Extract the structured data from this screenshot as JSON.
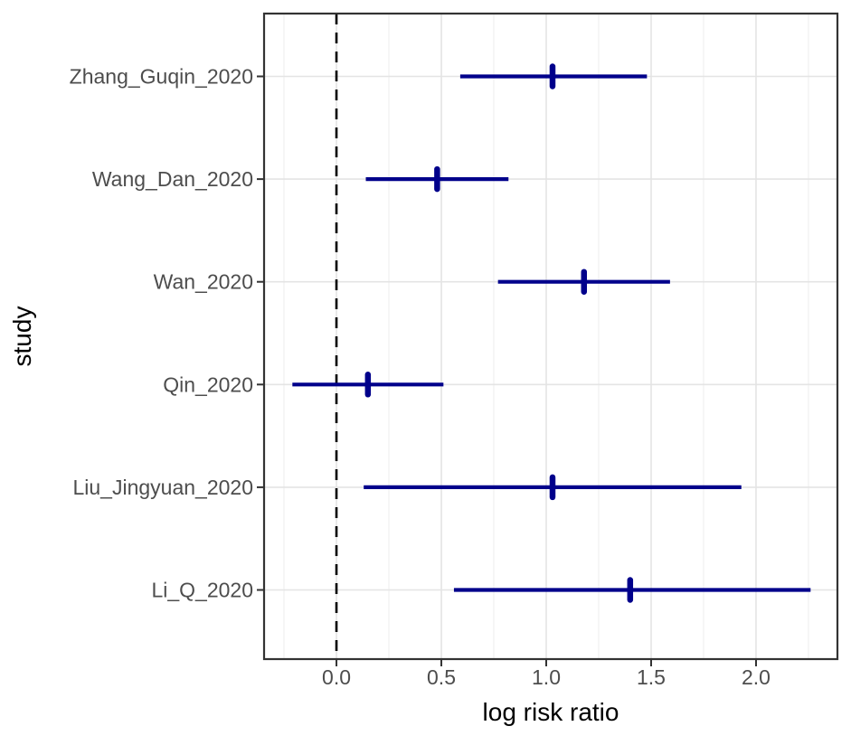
{
  "chart_data": {
    "type": "forest",
    "title": "",
    "xlabel": "log risk ratio",
    "ylabel": "study",
    "xlim": [
      -0.345,
      2.388
    ],
    "x_ticks": [
      0.0,
      0.5,
      1.0,
      1.5,
      2.0
    ],
    "x_tick_labels": [
      "0.0",
      "0.5",
      "1.0",
      "1.5",
      "2.0"
    ],
    "x_minor_ticks": [
      -0.25,
      0.25,
      0.75,
      1.25,
      1.75,
      2.25
    ],
    "reference_line": 0.0,
    "grid": "major-and-minor-x, major-y",
    "legend_position": "none",
    "studies": [
      {
        "label": "Zhang_Guqin_2020",
        "estimate": 1.03,
        "ci_low": 0.59,
        "ci_high": 1.48
      },
      {
        "label": "Wang_Dan_2020",
        "estimate": 0.48,
        "ci_low": 0.14,
        "ci_high": 0.82
      },
      {
        "label": "Wan_2020",
        "estimate": 1.18,
        "ci_low": 0.77,
        "ci_high": 1.59
      },
      {
        "label": "Qin_2020",
        "estimate": 0.15,
        "ci_low": -0.21,
        "ci_high": 0.51
      },
      {
        "label": "Liu_Jingyuan_2020",
        "estimate": 1.03,
        "ci_low": 0.13,
        "ci_high": 1.93
      },
      {
        "label": "Li_Q_2020",
        "estimate": 1.4,
        "ci_low": 0.56,
        "ci_high": 2.26
      }
    ],
    "colors": {
      "ci": "#00008B",
      "reference": "#000000",
      "grid_major": "#e4e4e4",
      "grid_minor": "#f1f1f1",
      "panel_border": "#333333",
      "tick_mark": "#333333",
      "tick_label": "#4d4d4d",
      "axis_title": "#000000",
      "background": "#ffffff"
    }
  }
}
